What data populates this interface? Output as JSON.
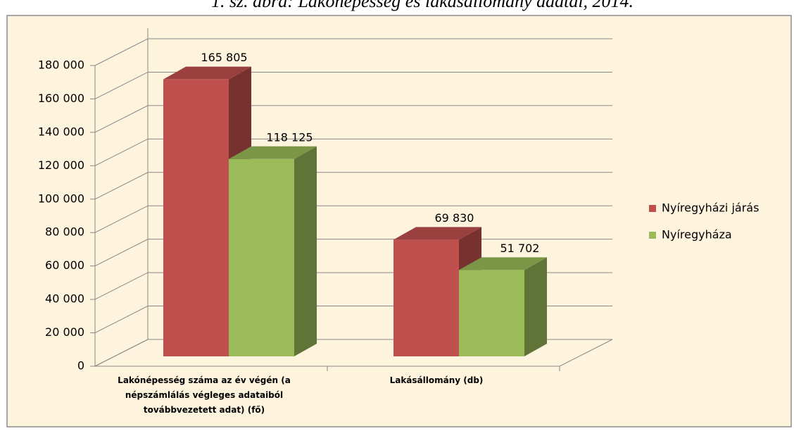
{
  "chart_data": {
    "type": "bar3d",
    "title": "1. sz. ábra: Lakónépesség és lakásállomány adatai, 2014.",
    "categories": [
      "Lakónépesség száma az év végén (a népszámlálás végleges adataiból továbbvezetett adat) (fő)",
      "Lakásállomány (db)"
    ],
    "series": [
      {
        "name": "Nyíregyházi járás",
        "color": "#c0504d",
        "values": [
          165805,
          69830
        ],
        "value_labels": [
          "165 805",
          "69 830"
        ]
      },
      {
        "name": "Nyíregyháza",
        "color": "#9bbb59",
        "values": [
          118125,
          51702
        ],
        "value_labels": [
          "118 125",
          "51 702"
        ]
      }
    ],
    "ylim": [
      0,
      180000
    ],
    "yticks": [
      0,
      {
        "value": 20000,
        "label": "20 000"
      },
      {
        "value": 40000,
        "label": "40 000"
      },
      {
        "value": 60000,
        "label": "60 000"
      },
      {
        "value": 80000,
        "label": "80 000"
      },
      {
        "value": 100000,
        "label": "100 000"
      },
      {
        "value": 120000,
        "label": "120 000"
      },
      {
        "value": 140000,
        "label": "140 000"
      },
      {
        "value": 160000,
        "label": "160 000"
      },
      {
        "value": 180000,
        "label": "180 000"
      }
    ],
    "grid": true,
    "legend": "right"
  }
}
